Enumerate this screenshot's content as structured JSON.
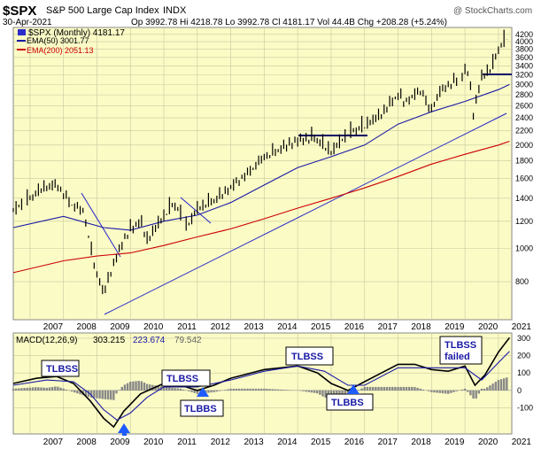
{
  "header": {
    "symbol": "$SPX",
    "name": "S&P 500 Large Cap Index",
    "exchange": "INDX",
    "watermark": "@ StockCharts.com",
    "date": "30-Apr-2021",
    "quote": "Op 3992.78  Hi 4218.78  Lo 3992.78  Cl 4181.17  Vol 44.4B  Chg +208.28 (+5.24%)"
  },
  "legend": {
    "price": "$SPX (Monthly) 4181.17",
    "ema50": "EMA(50) 3001.77",
    "ema200": "EMA(200) 2051.13"
  },
  "macd_legend": {
    "prefix": "MACD(12,26,9)",
    "macd": "303.215",
    "signal": "223.674",
    "hist": "79.542"
  },
  "colors": {
    "panel_bg": "#fbfbc6",
    "grid": "#c8c8a0",
    "price": "#000000",
    "ema50": "#1a1aa6",
    "ema200": "#cc0000",
    "trendline": "#2222cc",
    "histogram": "#888888",
    "arrow": "#1f5cff"
  },
  "annotations": [
    {
      "label": "TLBSS"
    },
    {
      "label": "TLBSS"
    },
    {
      "label": "TLBBS"
    },
    {
      "label": "TLBSS"
    },
    {
      "label": "TLBBS"
    },
    {
      "label": "TLBSS failed"
    }
  ],
  "chart_data": [
    {
      "type": "line",
      "series": [
        {
          "name": "$SPX (Monthly)",
          "x": [
            2006.5,
            2007.0,
            2007.4,
            2007.8,
            2008.2,
            2008.6,
            2008.9,
            2009.2,
            2009.5,
            2009.9,
            2010.3,
            2010.5,
            2011.3,
            2011.7,
            2012.0,
            2012.6,
            2013.0,
            2013.5,
            2014.0,
            2014.5,
            2015.0,
            2015.5,
            2016.0,
            2016.5,
            2017.0,
            2017.5,
            2018.0,
            2018.2,
            2018.7,
            2018.95,
            2019.3,
            2019.8,
            2020.1,
            2020.25,
            2020.5,
            2020.8,
            2021.0,
            2021.33
          ],
          "values": [
            1280,
            1400,
            1500,
            1530,
            1350,
            1280,
            900,
            735,
            900,
            1100,
            1200,
            1050,
            1350,
            1150,
            1300,
            1400,
            1500,
            1650,
            1850,
            1950,
            2050,
            2100,
            1900,
            2150,
            2270,
            2450,
            2800,
            2650,
            2900,
            2500,
            2900,
            3100,
            3300,
            2450,
            3150,
            3350,
            3800,
            4181
          ]
        },
        {
          "name": "EMA(50)",
          "x": [
            2006.5,
            2008.0,
            2009.2,
            2010.0,
            2011.0,
            2012.0,
            2013.0,
            2014.0,
            2015.0,
            2016.0,
            2017.0,
            2018.0,
            2019.0,
            2020.0,
            2021.0,
            2021.33
          ],
          "values": [
            1150,
            1240,
            1150,
            1130,
            1200,
            1250,
            1360,
            1530,
            1720,
            1850,
            2000,
            2300,
            2500,
            2680,
            2900,
            3002
          ]
        },
        {
          "name": "EMA(200)",
          "x": [
            2006.5,
            2008.0,
            2009.0,
            2010.0,
            2011.0,
            2012.0,
            2013.0,
            2014.0,
            2015.0,
            2016.0,
            2017.0,
            2018.0,
            2019.0,
            2020.0,
            2021.0,
            2021.33
          ],
          "values": [
            850,
            920,
            950,
            970,
            1020,
            1080,
            1140,
            1220,
            1310,
            1400,
            1500,
            1620,
            1760,
            1880,
            2000,
            2051
          ]
        }
      ],
      "y_ticks": [
        800,
        1000,
        1200,
        1400,
        1600,
        1800,
        2000,
        2200,
        2400,
        2600,
        2800,
        3000,
        3200,
        3400,
        3600,
        3800,
        4000,
        4200
      ],
      "x_ticks": [
        "2007",
        "2008",
        "2009",
        "2010",
        "2011",
        "2012",
        "2013",
        "2014",
        "2015",
        "2016",
        "2017",
        "2018",
        "2019",
        "2020",
        "2021"
      ],
      "y_scale": "log",
      "ylim": [
        620,
        4400
      ],
      "xlim": [
        2006.5,
        2021.4
      ],
      "grid": true
    },
    {
      "type": "line",
      "series": [
        {
          "name": "MACD",
          "x": [
            2006.5,
            2007.2,
            2007.8,
            2008.3,
            2008.8,
            2009.2,
            2009.5,
            2009.8,
            2010.3,
            2011.0,
            2011.5,
            2012.0,
            2012.5,
            2013.0,
            2014.0,
            2015.0,
            2015.6,
            2016.0,
            2016.5,
            2017.0,
            2017.5,
            2018.0,
            2018.5,
            2019.0,
            2019.5,
            2020.0,
            2020.3,
            2020.6,
            2021.0,
            2021.33
          ],
          "values": [
            40,
            70,
            80,
            40,
            -60,
            -160,
            -210,
            -120,
            -20,
            40,
            30,
            0,
            30,
            70,
            120,
            140,
            100,
            40,
            0,
            50,
            100,
            150,
            150,
            120,
            110,
            140,
            30,
            90,
            220,
            303
          ]
        },
        {
          "name": "Signal",
          "x": [
            2006.5,
            2007.5,
            2008.3,
            2008.8,
            2009.2,
            2009.6,
            2010.0,
            2010.5,
            2011.0,
            2012.0,
            2013.0,
            2014.0,
            2015.0,
            2015.8,
            2016.5,
            2017.0,
            2018.0,
            2019.0,
            2020.0,
            2020.5,
            2021.0,
            2021.33
          ],
          "values": [
            30,
            60,
            50,
            -20,
            -110,
            -170,
            -130,
            -40,
            20,
            20,
            60,
            110,
            140,
            110,
            30,
            30,
            130,
            130,
            130,
            60,
            160,
            224
          ]
        }
      ],
      "y_ticks": [
        -100,
        0,
        100,
        200,
        300
      ],
      "x_ticks": [
        "2007",
        "2008",
        "2009",
        "2010",
        "2011",
        "2012",
        "2013",
        "2014",
        "2015",
        "2016",
        "2017",
        "2018",
        "2019",
        "2020",
        "2021"
      ],
      "ylim": [
        -250,
        330
      ],
      "xlim": [
        2006.5,
        2021.4
      ],
      "grid": true
    }
  ]
}
